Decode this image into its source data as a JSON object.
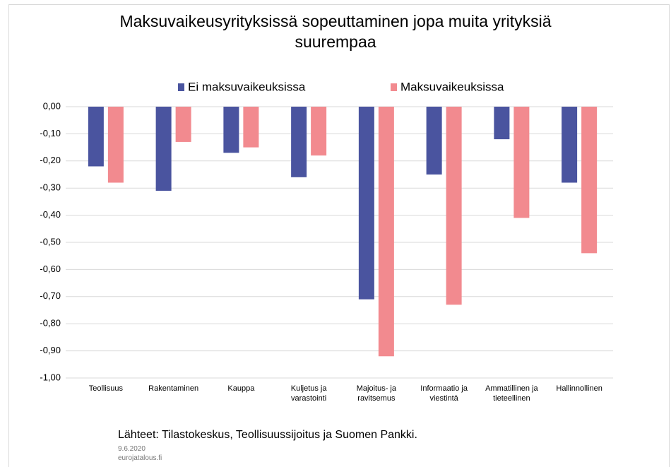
{
  "chart_data": {
    "type": "bar",
    "title": "Maksuvaikeusyrityksissä sopeuttaminen jopa muita yrityksiä suurempaa",
    "categories": [
      "Teollisuus",
      "Rakentaminen",
      "Kauppa",
      "Kuljetus ja varastointi",
      "Majoitus- ja ravitsemus",
      "Informaatio ja viestintä",
      "Ammatillinen ja tieteellinen",
      "Hallinnollinen"
    ],
    "series": [
      {
        "name": "Ei maksuvaikeuksissa",
        "color": "#4a549f",
        "values": [
          -0.22,
          -0.31,
          -0.17,
          -0.26,
          -0.71,
          -0.25,
          -0.12,
          -0.28
        ]
      },
      {
        "name": "Maksuvaikeuksissa",
        "color": "#f28a8f",
        "values": [
          -0.28,
          -0.13,
          -0.15,
          -0.18,
          -0.92,
          -0.73,
          -0.41,
          -0.54
        ]
      }
    ],
    "ylim": [
      -1,
      0
    ],
    "yticks": [
      {
        "value": 0,
        "label": "0,00"
      },
      {
        "value": -0.1,
        "label": "-0,10"
      },
      {
        "value": -0.2,
        "label": "-0,20"
      },
      {
        "value": -0.3,
        "label": "-0,30"
      },
      {
        "value": -0.4,
        "label": "-0,40"
      },
      {
        "value": -0.5,
        "label": "-0,50"
      },
      {
        "value": -0.6,
        "label": "-0,60"
      },
      {
        "value": -0.7,
        "label": "-0,70"
      },
      {
        "value": -0.8,
        "label": "-0,80"
      },
      {
        "value": -0.9,
        "label": "-0,90"
      },
      {
        "value": -1,
        "label": "-1,00"
      }
    ],
    "grid": true,
    "legend": "top",
    "source": "Lähteet: Tilastokeskus, Teollisuussijoitus  ja Suomen Pankki.",
    "date": "9.6.2020",
    "site": "eurojatalous.fi"
  }
}
